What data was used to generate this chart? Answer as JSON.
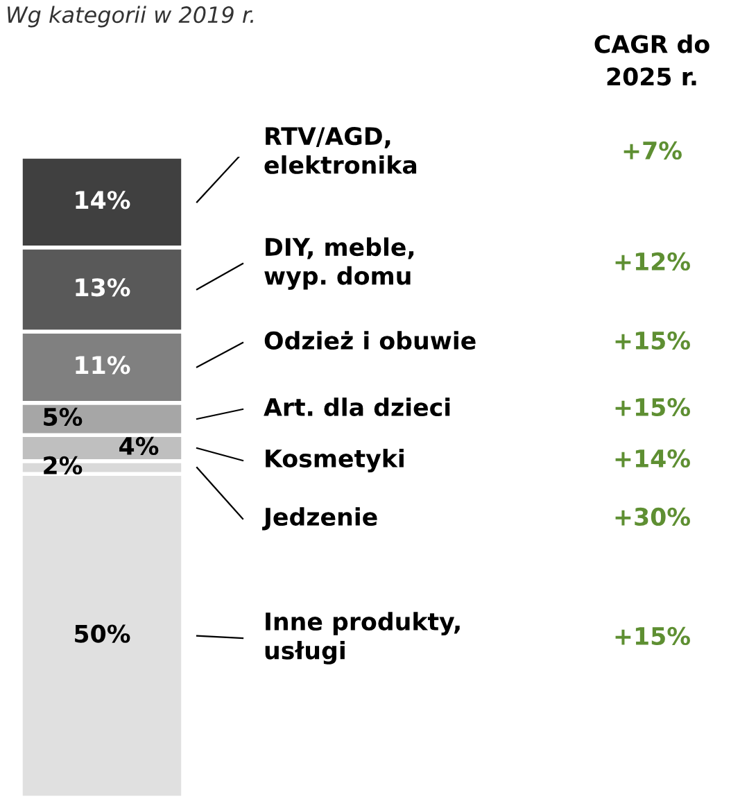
{
  "chart_data": {
    "type": "bar",
    "stacked": true,
    "title": "Wg kategorii w 2019 r.",
    "categories": [
      null
    ],
    "series": [
      {
        "name": "Inne produkty,\nusługi",
        "color": "#e0e0e0",
        "values": [
          50
        ],
        "value_labels": [
          "50%"
        ]
      },
      {
        "name": "Jedzenie",
        "color": "#d9d9d9",
        "values": [
          2
        ],
        "value_labels": [
          "2%"
        ]
      },
      {
        "name": "Kosmetyki",
        "color": "#bfbfbf",
        "values": [
          4
        ],
        "value_labels": [
          "4%"
        ]
      },
      {
        "name": "Art. dla dzieci",
        "color": "#a6a6a6",
        "values": [
          5
        ],
        "value_labels": [
          "5%"
        ]
      },
      {
        "name": "Odzież i obuwie",
        "color": "#808080",
        "values": [
          11
        ],
        "value_labels": [
          "11%"
        ]
      },
      {
        "name": "DIY, meble,\nwyp. domu",
        "color": "#595959",
        "values": [
          13
        ],
        "value_labels": [
          "13%"
        ]
      },
      {
        "name": "RTV/AGD,\nelektronika",
        "color": "#404040",
        "values": [
          14
        ],
        "value_labels": [
          "14%"
        ]
      }
    ],
    "annotations": [
      "CAGR do\n2025 r.",
      "+15%",
      "+30%",
      "+14%",
      "+15%",
      "+15%",
      "+12%",
      "+7%"
    ]
  }
}
